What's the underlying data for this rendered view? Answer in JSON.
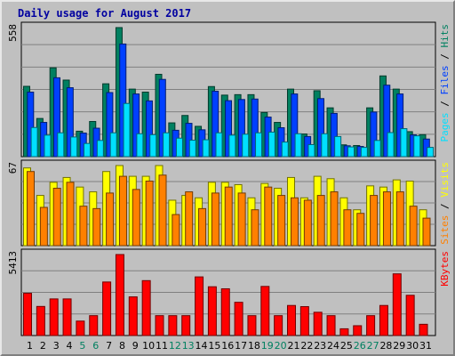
{
  "chart_data": {
    "type": "bar",
    "title": "Daily usage for August 2017",
    "categories": [
      "1",
      "2",
      "3",
      "4",
      "5",
      "6",
      "7",
      "8",
      "9",
      "10",
      "11",
      "12",
      "13",
      "14",
      "15",
      "16",
      "17",
      "18",
      "19",
      "20",
      "21",
      "22",
      "23",
      "24",
      "25",
      "26",
      "27",
      "28",
      "29",
      "30",
      "31"
    ],
    "weekend_days": [
      "5",
      "6",
      "12",
      "13",
      "19",
      "20",
      "26",
      "27"
    ],
    "panels": [
      {
        "id": "hits-files-pages",
        "ymax_label": "558",
        "ylim": [
          0,
          558
        ],
        "right_label_parts": [
          {
            "text": "Pages",
            "color": "#00e0ff"
          },
          {
            "text": " / ",
            "color": "#000000"
          },
          {
            "text": "Files",
            "color": "#0040ff"
          },
          {
            "text": " / ",
            "color": "#000000"
          },
          {
            "text": "Hits",
            "color": "#008060"
          }
        ],
        "series": [
          {
            "name": "Hits",
            "color": "#008060",
            "values": [
              304,
              165,
              384,
              331,
              110,
              152,
              315,
              558,
              292,
              279,
              356,
              146,
              178,
              131,
              303,
              266,
              268,
              268,
              191,
              148,
              292,
              98,
              285,
              211,
              51,
              48,
              211,
              349,
              292,
              108,
              95
            ]
          },
          {
            "name": "Files",
            "color": "#0040ff",
            "values": [
              279,
              148,
              341,
              298,
              102,
              123,
              277,
              487,
              271,
              241,
              334,
              114,
              144,
              116,
              283,
              242,
              247,
              249,
              171,
              125,
              271,
              87,
              251,
              187,
              47,
              44,
              193,
              309,
              271,
              94,
              76
            ]
          },
          {
            "name": "Pages",
            "color": "#00e0ff",
            "values": [
              126,
              93,
              103,
              85,
              57,
              70,
              103,
              230,
              99,
              95,
              103,
              80,
              71,
              73,
              103,
              93,
              97,
              103,
              106,
              63,
              99,
              52,
              99,
              87,
              42,
              40,
              70,
              104,
              121,
              90,
              40
            ]
          }
        ]
      },
      {
        "id": "visits-sites",
        "ymax_label": "67",
        "ylim": [
          0,
          67
        ],
        "right_label_parts": [
          {
            "text": "Sites",
            "color": "#ff8000"
          },
          {
            "text": " / ",
            "color": "#000000"
          },
          {
            "text": "Visits",
            "color": "#ffff00"
          }
        ],
        "series": [
          {
            "name": "Visits",
            "color": "#ffff00",
            "values": [
              65,
              42,
              53,
              57,
              49,
              45,
              62,
              67,
              58,
              58,
              67,
              38,
              42,
              40,
              53,
              53,
              51,
              40,
              52,
              48,
              57,
              40,
              58,
              56,
              40,
              30,
              50,
              49,
              55,
              54,
              30
            ]
          },
          {
            "name": "Sites",
            "color": "#ff8000",
            "values": [
              62,
              32,
              48,
              53,
              33,
              31,
              44,
              58,
              47,
              54,
              59,
              26,
              45,
              31,
              44,
              49,
              44,
              30,
              49,
              42,
              40,
              38,
              42,
              45,
              30,
              27,
              42,
              45,
              45,
              33,
              23
            ]
          }
        ]
      },
      {
        "id": "kbytes",
        "ymax_label": "5413",
        "ylim": [
          0,
          5413
        ],
        "right_label_parts": [
          {
            "text": "KBytes",
            "color": "#ff0000"
          }
        ],
        "series": [
          {
            "name": "KBytes",
            "color": "#ff0000",
            "values": [
              2825,
              1944,
              2447,
              2447,
              966,
              1329,
              3578,
              5413,
              2584,
              3670,
              1329,
              1329,
              1329,
              3919,
              3260,
              3124,
              2221,
              1329,
              3282,
              1329,
              2009,
              1932,
              1555,
              1329,
              451,
              656,
              1329,
              2009,
              4123,
              2690,
              752
            ]
          }
        ]
      }
    ]
  }
}
